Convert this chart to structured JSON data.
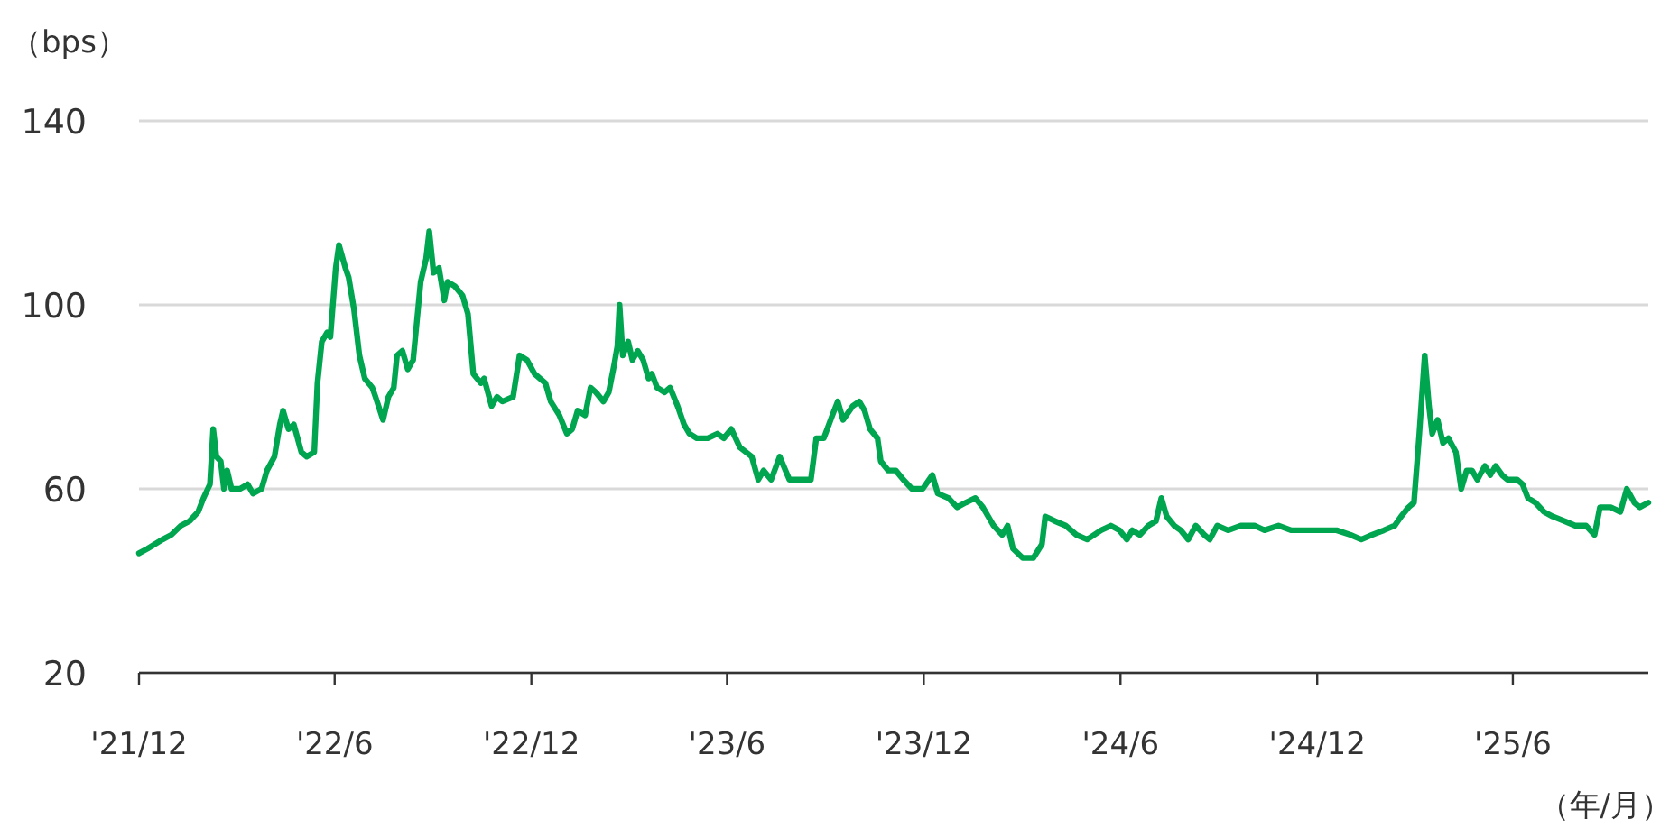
{
  "chart_data": {
    "type": "line",
    "ylabel": "（bps）",
    "xlabel": "（年/月）",
    "xlim": [
      "2021-12-01",
      "2025-10-05"
    ],
    "ylim": [
      20,
      140
    ],
    "yticks": [
      20,
      60,
      100,
      140
    ],
    "xticks": [
      {
        "value": "2021-12-01",
        "label": "'21/12"
      },
      {
        "value": "2022-06-01",
        "label": "'22/6"
      },
      {
        "value": "2022-12-01",
        "label": "'22/12"
      },
      {
        "value": "2023-06-01",
        "label": "'23/6"
      },
      {
        "value": "2023-12-01",
        "label": "'23/12"
      },
      {
        "value": "2024-06-01",
        "label": "'24/6"
      },
      {
        "value": "2024-12-01",
        "label": "'24/12"
      },
      {
        "value": "2025-06-01",
        "label": "'25/6"
      }
    ],
    "grid": "y",
    "x": [
      "2021-12-01",
      "2021-12-09",
      "2021-12-23",
      "2021-12-31",
      "2022-01-09",
      "2022-01-17",
      "2022-01-25",
      "2022-01-30",
      "2022-02-05",
      "2022-02-08",
      "2022-02-11",
      "2022-02-15",
      "2022-02-18",
      "2022-02-21",
      "2022-02-25",
      "2022-03-05",
      "2022-03-12",
      "2022-03-17",
      "2022-03-25",
      "2022-03-30",
      "2022-04-06",
      "2022-04-11",
      "2022-04-14",
      "2022-04-19",
      "2022-04-24",
      "2022-05-01",
      "2022-05-06",
      "2022-05-13",
      "2022-05-16",
      "2022-05-20",
      "2022-05-25",
      "2022-05-28",
      "2022-06-02",
      "2022-06-05",
      "2022-06-11",
      "2022-06-14",
      "2022-06-19",
      "2022-06-24",
      "2022-06-29",
      "2022-07-06",
      "2022-07-09",
      "2022-07-16",
      "2022-07-21",
      "2022-07-26",
      "2022-07-29",
      "2022-08-03",
      "2022-08-08",
      "2022-08-13",
      "2022-08-20",
      "2022-08-25",
      "2022-08-28",
      "2022-09-01",
      "2022-09-06",
      "2022-09-11",
      "2022-09-14",
      "2022-09-21",
      "2022-09-28",
      "2022-10-03",
      "2022-10-08",
      "2022-10-15",
      "2022-10-18",
      "2022-10-25",
      "2022-10-30",
      "2022-11-04",
      "2022-11-14",
      "2022-11-20",
      "2022-11-27",
      "2022-12-04",
      "2022-12-14",
      "2022-12-19",
      "2022-12-27",
      "2023-01-03",
      "2023-01-08",
      "2023-01-13",
      "2023-01-20",
      "2023-01-25",
      "2023-01-30",
      "2023-02-06",
      "2023-02-11",
      "2023-02-16",
      "2023-02-19",
      "2023-02-21",
      "2023-02-24",
      "2023-03-01",
      "2023-03-05",
      "2023-03-10",
      "2023-03-15",
      "2023-03-20",
      "2023-03-23",
      "2023-03-28",
      "2023-04-04",
      "2023-04-09",
      "2023-04-16",
      "2023-04-22",
      "2023-04-27",
      "2023-05-04",
      "2023-05-14",
      "2023-05-23",
      "2023-05-29",
      "2023-06-05",
      "2023-06-13",
      "2023-06-24",
      "2023-06-30",
      "2023-07-05",
      "2023-07-12",
      "2023-07-20",
      "2023-07-29",
      "2023-08-05",
      "2023-08-18",
      "2023-08-23",
      "2023-08-30",
      "2023-09-07",
      "2023-09-12",
      "2023-09-17",
      "2023-09-26",
      "2023-10-02",
      "2023-10-07",
      "2023-10-12",
      "2023-10-19",
      "2023-10-22",
      "2023-10-29",
      "2023-11-05",
      "2023-11-12",
      "2023-11-20",
      "2023-11-30",
      "2023-12-09",
      "2023-12-14",
      "2023-12-24",
      "2024-01-01",
      "2024-01-09",
      "2024-01-18",
      "2024-01-25",
      "2024-02-04",
      "2024-02-12",
      "2024-02-17",
      "2024-02-22",
      "2024-03-02",
      "2024-03-12",
      "2024-03-20",
      "2024-03-23",
      "2024-04-01",
      "2024-04-11",
      "2024-04-21",
      "2024-05-01",
      "2024-05-14",
      "2024-05-23",
      "2024-05-31",
      "2024-06-07",
      "2024-06-12",
      "2024-06-19",
      "2024-06-27",
      "2024-07-04",
      "2024-07-09",
      "2024-07-14",
      "2024-07-21",
      "2024-07-27",
      "2024-08-03",
      "2024-08-10",
      "2024-08-18",
      "2024-08-23",
      "2024-08-30",
      "2024-09-09",
      "2024-09-21",
      "2024-10-04",
      "2024-10-13",
      "2024-10-26",
      "2024-11-07",
      "2024-11-22",
      "2024-12-05",
      "2024-12-19",
      "2025-01-01",
      "2025-01-11",
      "2025-01-21",
      "2025-02-01",
      "2025-02-11",
      "2025-02-17",
      "2025-02-24",
      "2025-03-01",
      "2025-03-06",
      "2025-03-11",
      "2025-03-15",
      "2025-03-18",
      "2025-03-23",
      "2025-03-28",
      "2025-04-02",
      "2025-04-09",
      "2025-04-14",
      "2025-04-19",
      "2025-04-24",
      "2025-04-29",
      "2025-05-06",
      "2025-05-11",
      "2025-05-16",
      "2025-05-22",
      "2025-05-27",
      "2025-06-05",
      "2025-06-10",
      "2025-06-15",
      "2025-06-22",
      "2025-06-30",
      "2025-07-08",
      "2025-07-19",
      "2025-07-29",
      "2025-08-08",
      "2025-08-16",
      "2025-08-21",
      "2025-08-31",
      "2025-09-09",
      "2025-09-15",
      "2025-09-22",
      "2025-09-27",
      "2025-10-05"
    ],
    "series": [
      {
        "color": "#00a550",
        "values": [
          46,
          47,
          49,
          50,
          52,
          53,
          55,
          58,
          61,
          73,
          67,
          66,
          60,
          64,
          60,
          60,
          61,
          59,
          60,
          64,
          67,
          74,
          77,
          73,
          74,
          68,
          67,
          68,
          83,
          92,
          94,
          93,
          108,
          113,
          108,
          106,
          99,
          89,
          84,
          82,
          80,
          75,
          80,
          82,
          89,
          90,
          86,
          88,
          105,
          110,
          116,
          107,
          108,
          101,
          105,
          104,
          102,
          98,
          85,
          83,
          84,
          78,
          80,
          79,
          80,
          89,
          88,
          85,
          83,
          79,
          76,
          72,
          73,
          77,
          76,
          82,
          81,
          79,
          81,
          87,
          91,
          100,
          89,
          92,
          88,
          90,
          88,
          84,
          85,
          82,
          81,
          82,
          78,
          74,
          72,
          71,
          71,
          72,
          71,
          73,
          69,
          67,
          62,
          64,
          62,
          67,
          62,
          62,
          62,
          71,
          71,
          76,
          79,
          75,
          78,
          79,
          77,
          73,
          71,
          66,
          64,
          64,
          62,
          60,
          60,
          63,
          59,
          58,
          56,
          57,
          58,
          56,
          52,
          50,
          52,
          47,
          45,
          45,
          48,
          54,
          53,
          52,
          50,
          49,
          51,
          52,
          51,
          49,
          51,
          50,
          52,
          53,
          58,
          54,
          52,
          51,
          49,
          52,
          50,
          49,
          52,
          51,
          52,
          52,
          51,
          52,
          51,
          51,
          51,
          51,
          50,
          49,
          50,
          51,
          52,
          54,
          56,
          57,
          72,
          89,
          78,
          72,
          75,
          70,
          71,
          68,
          60,
          64,
          64,
          62,
          65,
          63,
          65,
          63,
          62,
          62,
          61,
          58,
          57,
          55,
          54,
          53,
          52,
          52,
          50,
          56,
          56,
          55,
          60,
          57,
          56,
          57
        ]
      }
    ]
  }
}
